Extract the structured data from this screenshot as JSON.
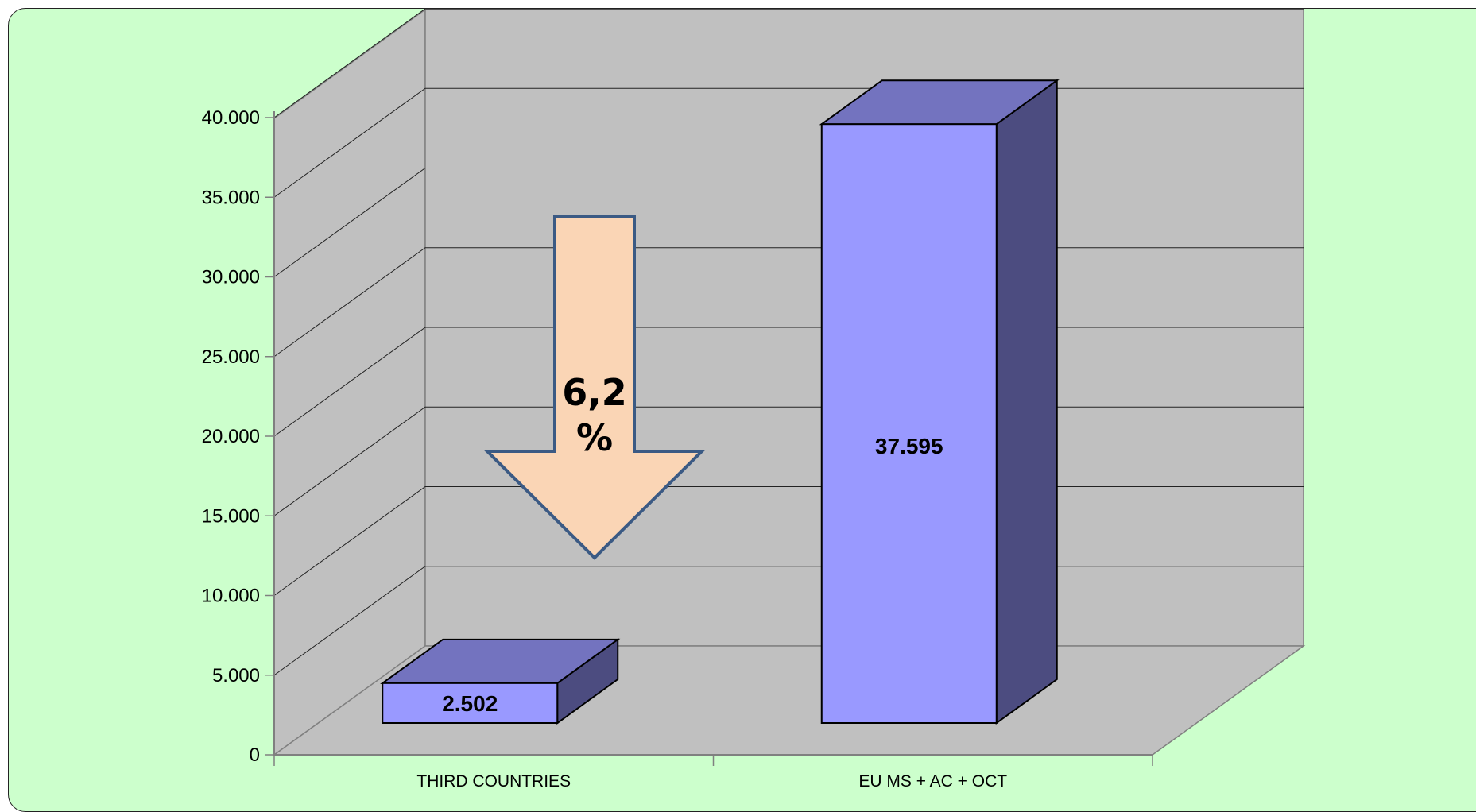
{
  "chart_data": {
    "type": "bar",
    "style": "3d-column",
    "categories": [
      "THIRD COUNTRIES",
      "EU MS + AC + OCT"
    ],
    "values": [
      2502,
      37595
    ],
    "data_labels": [
      "2.502",
      "37.595"
    ],
    "ylim": [
      0,
      40000
    ],
    "yticks": [
      0,
      5000,
      10000,
      15000,
      20000,
      25000,
      30000,
      35000,
      40000
    ],
    "ytick_labels": [
      "0",
      "5.000",
      "10.000",
      "15.000",
      "20.000",
      "25.000",
      "30.000",
      "35.000",
      "40.000"
    ],
    "grid": true,
    "legend": "none",
    "annotation": {
      "kind": "down-arrow",
      "text_line1": "6,2",
      "text_line2": "%"
    },
    "colors": {
      "background": "#ccffcc",
      "walls": "#c0c0c0",
      "bar_front": "#9999ff",
      "bar_top": "#7373bf",
      "bar_side": "#4c4c80",
      "arrow_fill": "#fad5b5",
      "arrow_stroke": "#3b5a84"
    }
  }
}
